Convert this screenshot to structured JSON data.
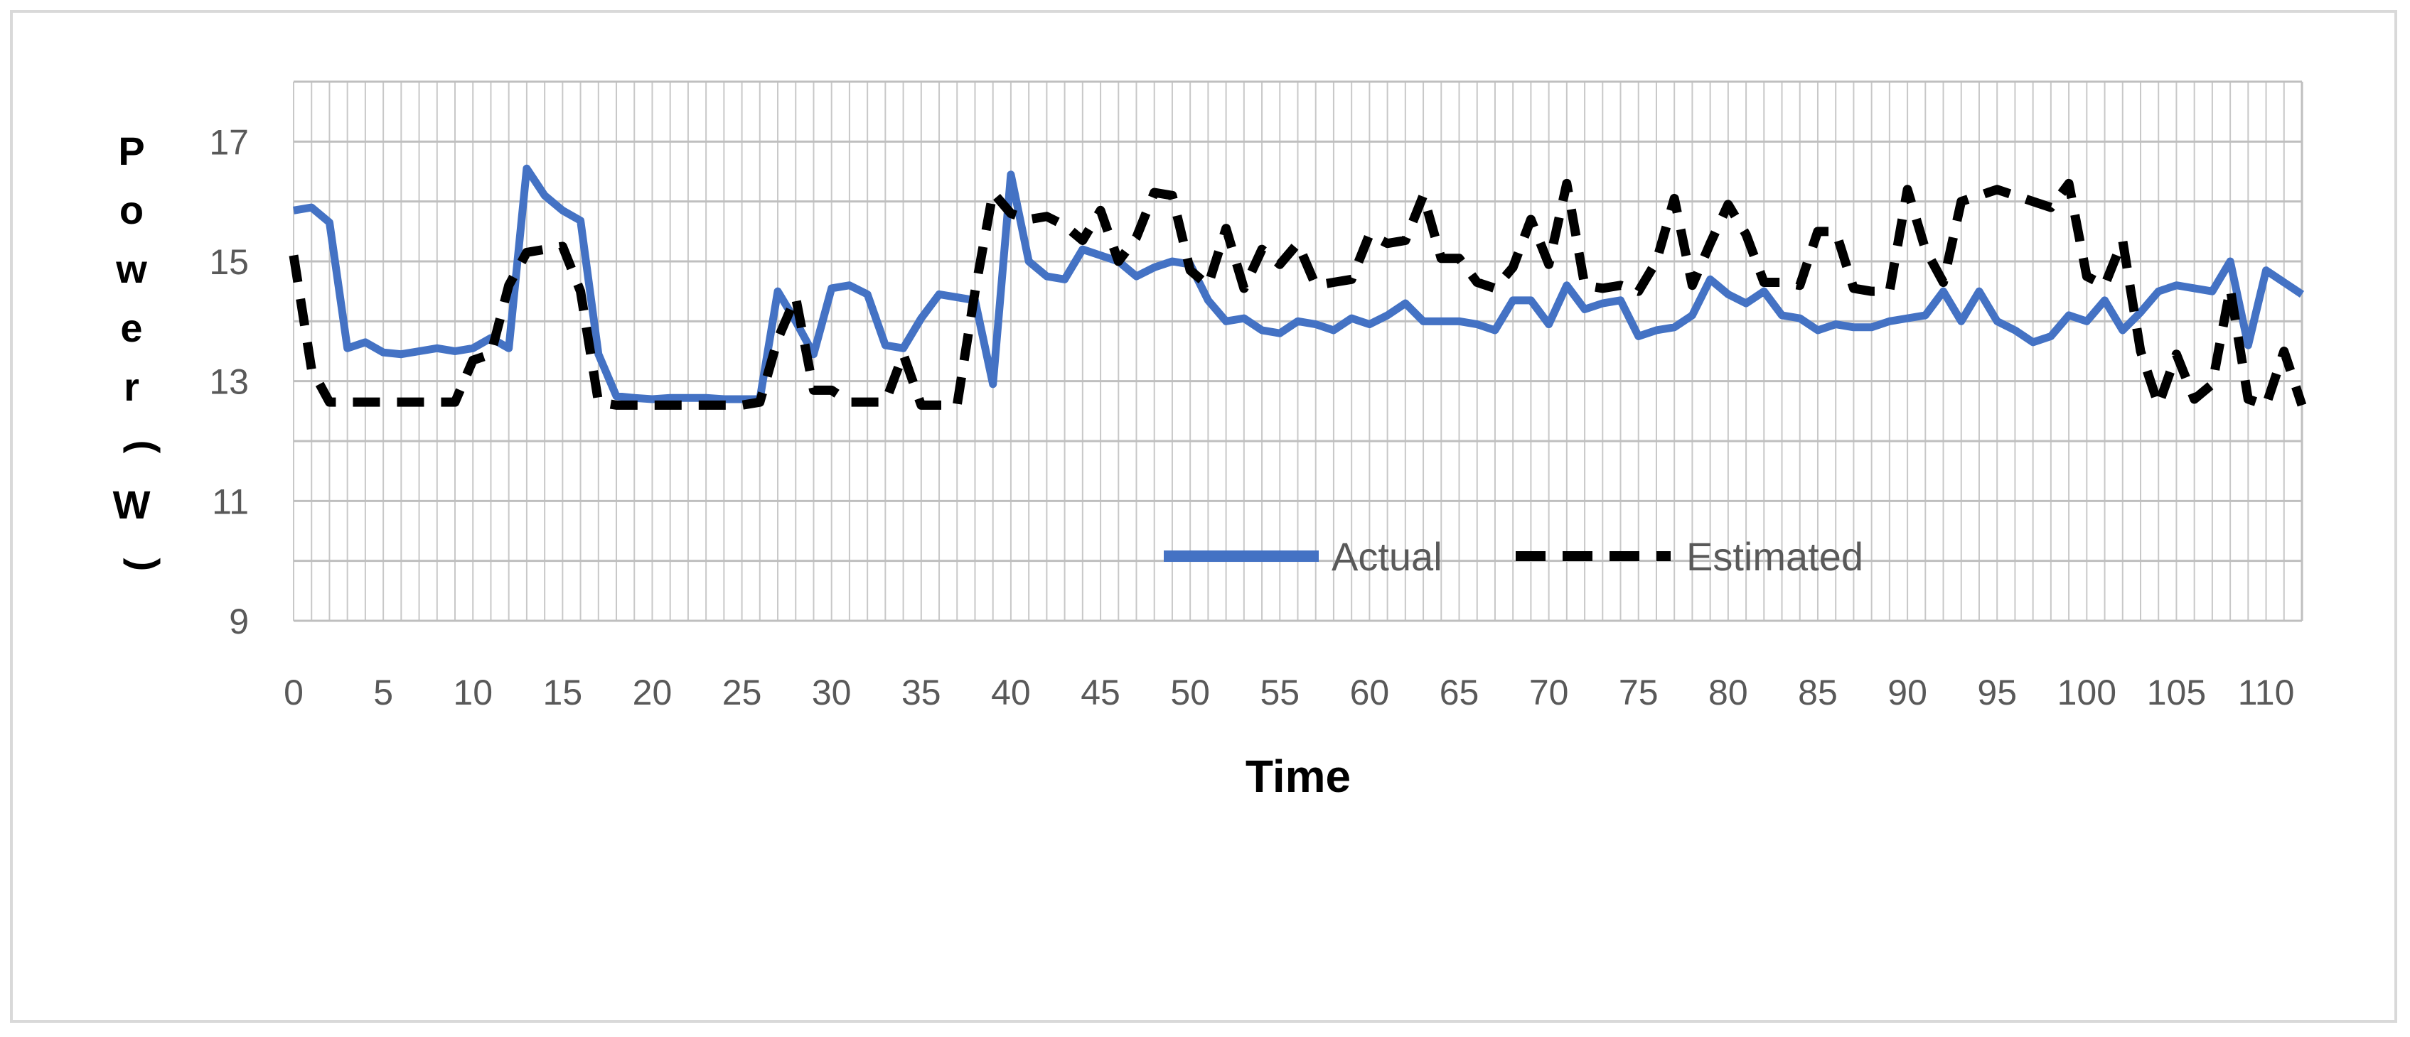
{
  "chart_data": {
    "type": "line",
    "xlabel": "Time",
    "ylabel": "Power (W)",
    "ylim": [
      9,
      18
    ],
    "yticks": [
      9,
      11,
      13,
      15,
      17
    ],
    "xlim": [
      0,
      112
    ],
    "xticks": [
      0,
      5,
      10,
      15,
      20,
      25,
      30,
      35,
      40,
      45,
      50,
      55,
      60,
      65,
      70,
      75,
      80,
      85,
      90,
      95,
      100,
      105,
      110
    ],
    "grid": "horizontal and vertical",
    "legend_position": "center-bottom",
    "series": [
      {
        "name": "Actual",
        "color": "#4472c4",
        "style": "solid",
        "values": [
          15.85,
          15.9,
          15.65,
          13.55,
          13.65,
          13.48,
          13.45,
          13.5,
          13.55,
          13.5,
          13.55,
          13.72,
          13.55,
          16.55,
          16.1,
          15.85,
          15.68,
          13.45,
          12.75,
          12.72,
          12.7,
          12.72,
          12.72,
          12.72,
          12.7,
          12.7,
          12.7,
          14.5,
          14.0,
          13.45,
          14.55,
          14.6,
          14.45,
          13.6,
          13.55,
          14.05,
          14.45,
          14.4,
          14.35,
          12.95,
          16.45,
          15.0,
          14.75,
          14.7,
          15.2,
          15.1,
          15.0,
          14.75,
          14.9,
          15.0,
          14.95,
          14.35,
          14.0,
          14.05,
          13.85,
          13.8,
          14.0,
          13.95,
          13.85,
          14.05,
          13.95,
          14.1,
          14.3,
          14.0,
          14.0,
          14.0,
          13.95,
          13.85,
          14.35,
          14.35,
          13.95,
          14.6,
          14.2,
          14.3,
          14.35,
          13.75,
          13.85,
          13.9,
          14.1,
          14.7,
          14.45,
          14.3,
          14.5,
          14.1,
          14.05,
          13.85,
          13.95,
          13.9,
          13.9,
          14.0,
          14.05,
          14.1,
          14.5,
          14.0,
          14.5,
          14.0,
          13.85,
          13.65,
          13.75,
          14.1,
          14.0,
          14.35,
          13.85,
          14.15,
          14.5,
          14.6,
          14.55,
          14.5,
          15.0,
          13.6,
          14.85,
          14.65,
          14.45
        ]
      },
      {
        "name": "Estimated",
        "color": "#000000",
        "style": "dashed",
        "values": [
          15.1,
          13.2,
          12.65,
          12.65,
          12.65,
          12.65,
          12.65,
          12.65,
          12.65,
          12.65,
          13.35,
          13.45,
          14.6,
          15.15,
          15.2,
          15.25,
          14.5,
          12.65,
          12.6,
          12.6,
          12.6,
          12.6,
          12.6,
          12.6,
          12.6,
          12.6,
          12.65,
          13.7,
          14.4,
          12.85,
          12.85,
          12.65,
          12.65,
          12.65,
          13.45,
          12.6,
          12.6,
          12.6,
          14.5,
          16.15,
          15.8,
          15.7,
          15.75,
          15.6,
          15.35,
          15.85,
          15.0,
          15.4,
          16.15,
          16.1,
          14.85,
          14.6,
          15.55,
          14.55,
          15.2,
          14.95,
          15.3,
          14.6,
          14.65,
          14.7,
          15.45,
          15.3,
          15.35,
          16.1,
          15.05,
          15.05,
          14.65,
          14.55,
          14.9,
          15.7,
          14.95,
          16.3,
          14.6,
          14.55,
          14.6,
          14.5,
          15.0,
          16.05,
          14.6,
          15.3,
          15.95,
          15.45,
          14.65,
          14.65,
          14.6,
          15.5,
          15.5,
          14.55,
          14.5,
          14.5,
          16.2,
          15.2,
          14.65,
          16.0,
          16.1,
          16.2,
          16.1,
          16.0,
          15.9,
          16.3,
          14.75,
          14.6,
          15.35,
          13.5,
          12.6,
          13.45,
          12.7,
          12.95,
          14.55,
          12.7,
          12.6,
          13.5,
          12.6
        ]
      }
    ]
  }
}
